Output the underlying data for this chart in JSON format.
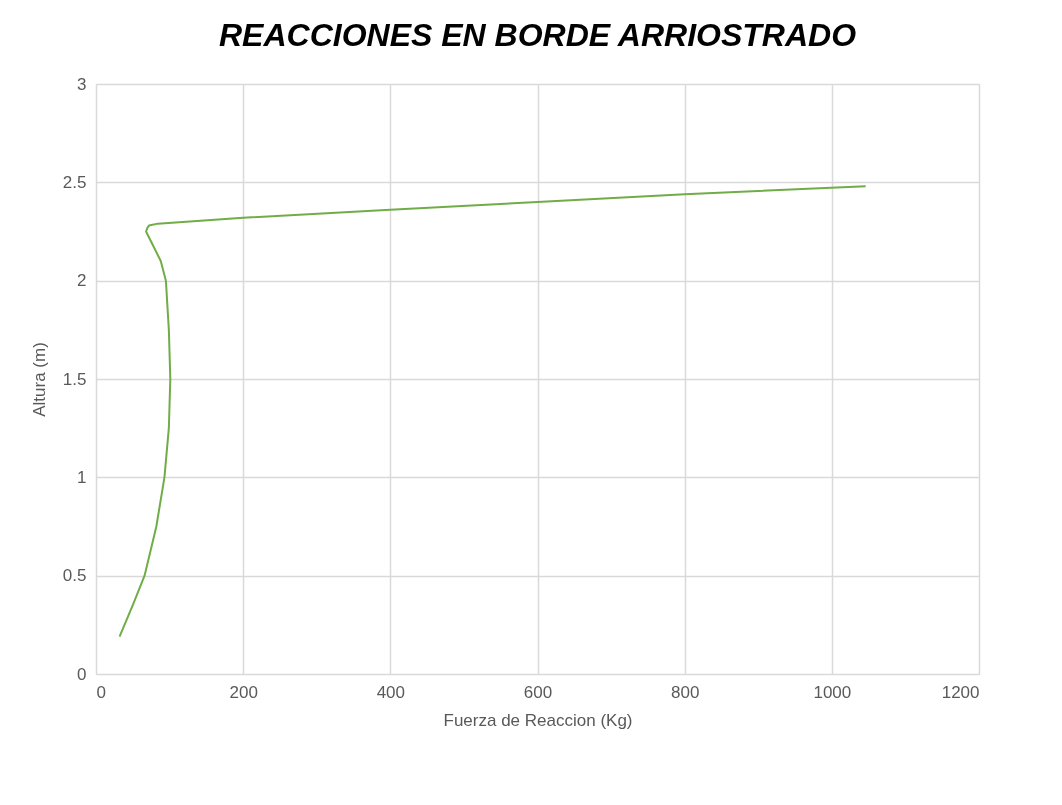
{
  "chart_data": {
    "type": "line",
    "title": "REACCIONES EN BORDE ARRIOSTRADO",
    "xlabel": "Fuerza de Reaccion (Kg)",
    "ylabel": "Altura (m)",
    "series": [
      {
        "color": "#70ad47",
        "x": [
          32,
          50,
          66,
          82,
          93,
          99,
          101,
          99,
          95,
          88,
          76,
          68,
          70,
          72,
          84,
          200,
          400,
          600,
          800,
          1046
        ],
        "values": [
          0.19,
          0.35,
          0.5,
          0.75,
          1.0,
          1.25,
          1.5,
          1.75,
          2.0,
          2.1,
          2.19,
          2.25,
          2.27,
          2.28,
          2.29,
          2.32,
          2.36,
          2.4,
          2.44,
          2.48
        ]
      }
    ],
    "xlim": [
      0,
      1200
    ],
    "xticks": [
      0,
      200,
      400,
      600,
      800,
      1000,
      1200
    ],
    "ylim": [
      0,
      3
    ],
    "yticks": [
      0,
      0.5,
      1,
      1.5,
      2,
      2.5,
      3
    ],
    "grid": true,
    "marker": "none",
    "line_style": "solid"
  }
}
